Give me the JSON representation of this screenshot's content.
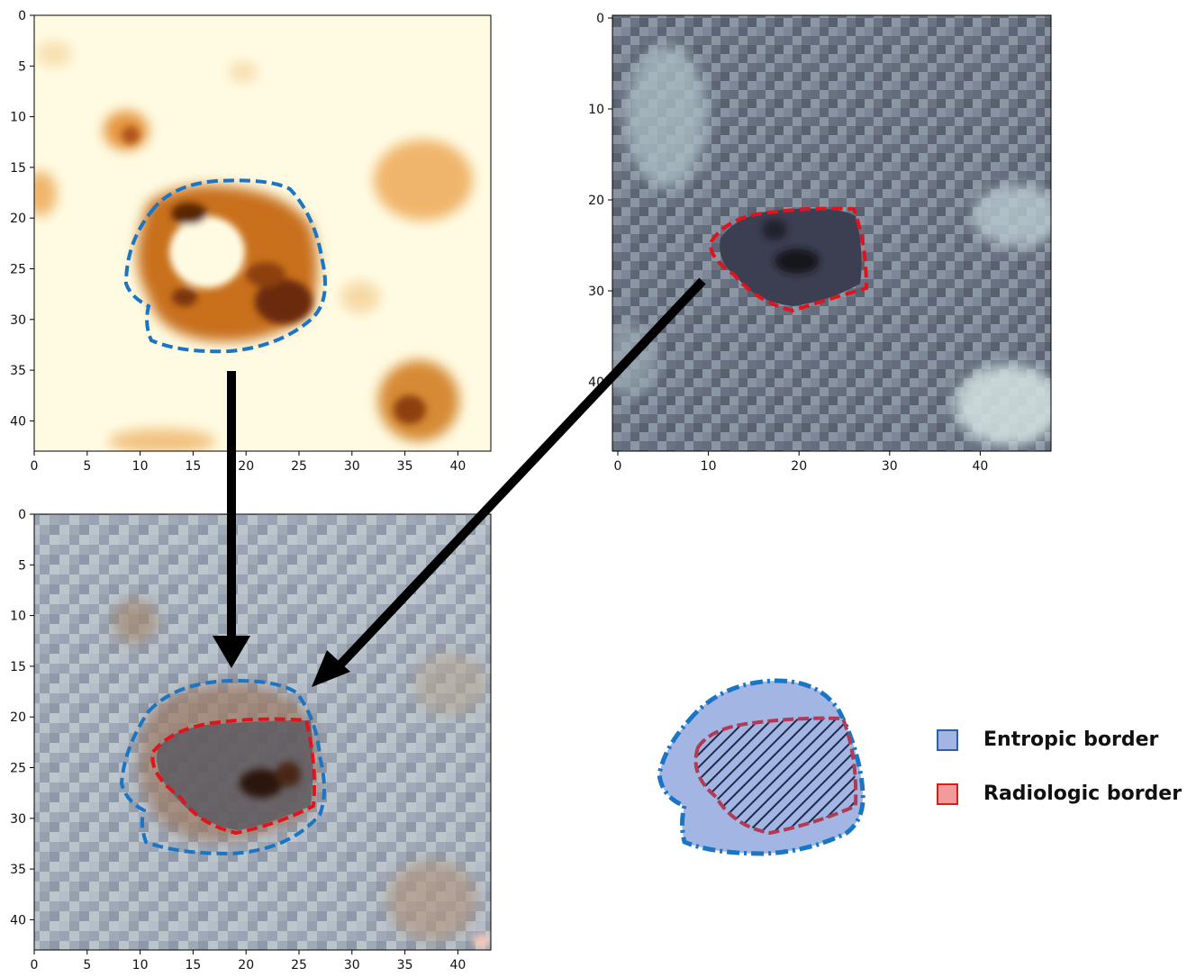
{
  "panels": [
    {
      "id": "entropy-map",
      "x_ticks": [
        "0",
        "5",
        "10",
        "15",
        "20",
        "25",
        "30",
        "35",
        "40"
      ],
      "y_ticks": [
        "0",
        "5",
        "10",
        "15",
        "20",
        "25",
        "30",
        "35",
        "40"
      ]
    },
    {
      "id": "ct-image",
      "x_ticks": [
        "0",
        "10",
        "20",
        "30",
        "40"
      ],
      "y_ticks": [
        "0",
        "10",
        "20",
        "30",
        "40"
      ]
    },
    {
      "id": "overlay",
      "x_ticks": [
        "0",
        "5",
        "10",
        "15",
        "20",
        "25",
        "30",
        "35",
        "40"
      ],
      "y_ticks": [
        "0",
        "5",
        "10",
        "15",
        "20",
        "25",
        "30",
        "35",
        "40"
      ]
    }
  ],
  "legend": {
    "items": [
      {
        "label": "Entropic border",
        "fill": "#a3b6e3",
        "stroke": "#2f5fa8"
      },
      {
        "label": "Radiologic border",
        "fill": "#f39a9a",
        "stroke": "#d62020"
      }
    ]
  },
  "colors": {
    "entropic_line": "#1a75c4",
    "radiologic_line": "#e0141c",
    "arrow": "#000000"
  }
}
